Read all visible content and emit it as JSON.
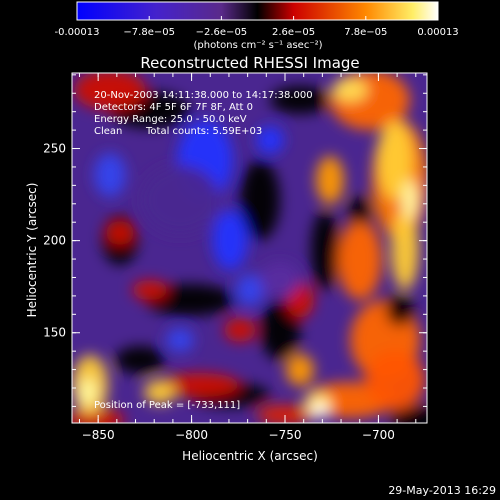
{
  "colorbar": {
    "tick_labels": [
      "-0.00013",
      "−7.8e−05",
      "−2.6e−05",
      "2.6e−05",
      "7.8e−05",
      "0.00013"
    ],
    "tick_values": [
      -0.00013,
      -7.8e-05,
      -2.6e-05,
      2.6e-05,
      7.8e-05,
      0.00013
    ],
    "range": [
      -0.00013,
      0.00013
    ],
    "units": "(photons cm⁻² s⁻¹ asec⁻²)",
    "colors": [
      "#0000ff",
      "#6633aa",
      "#000000",
      "#ff2200",
      "#ffaa00",
      "#ffffff"
    ]
  },
  "chart_data": {
    "type": "heatmap",
    "title": "Reconstructed RHESSI Image",
    "xlabel": "Heliocentric X (arcsec)",
    "ylabel": "Heliocentric Y (arcsec)",
    "xlim": [
      -864,
      -674
    ],
    "ylim": [
      101,
      291
    ],
    "x_ticks": [
      -850,
      -800,
      -750,
      -700
    ],
    "x_tick_labels": [
      "−850",
      "−800",
      "−750",
      "−700"
    ],
    "y_ticks": [
      150,
      200,
      250
    ],
    "y_tick_labels": [
      "150",
      "200",
      "250"
    ],
    "peak": [
      -733,
      111
    ],
    "annotations": {
      "time": "20-Nov-2003 14:11:38.000 to 14:17:38.000",
      "detectors": "Detectors: 4F 5F 6F 7F 8F, Att 0",
      "energy": "Energy Range: 25.0 - 50.0 keV",
      "method": "Clean",
      "counts": "Total counts: 5.59E+03",
      "peak_label": "Position of Peak = [-733,111]"
    }
  },
  "footer": {
    "date": "29-May-2013 16:29"
  }
}
